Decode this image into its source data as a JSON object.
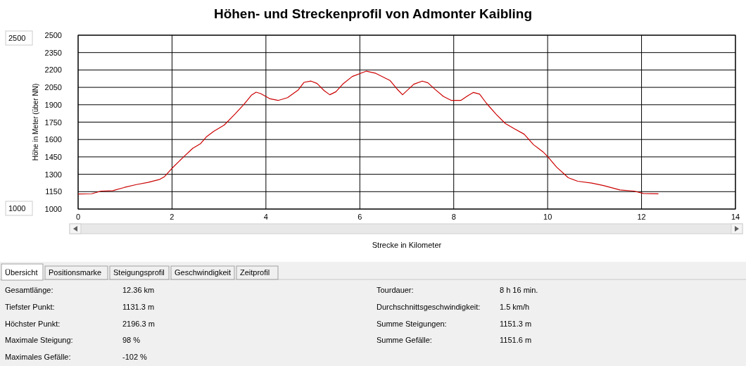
{
  "chart_data": {
    "type": "line",
    "title": "Höhen- und Streckenprofil von Admonter Kaibling",
    "xlabel": "Strecke in Kilometer",
    "ylabel": "Höhe in Meter (über NN)",
    "x": [
      0,
      0.29,
      0.49,
      0.74,
      0.99,
      1.24,
      1.49,
      1.74,
      1.84,
      2.0,
      2.24,
      2.44,
      2.61,
      2.74,
      2.89,
      3.11,
      3.34,
      3.54,
      3.69,
      3.79,
      3.89,
      4.09,
      4.26,
      4.46,
      4.69,
      4.81,
      4.96,
      5.09,
      5.24,
      5.36,
      5.49,
      5.64,
      5.84,
      6.14,
      6.34,
      6.64,
      6.79,
      6.91,
      7.15,
      7.33,
      7.45,
      7.6,
      7.78,
      7.95,
      8.15,
      8.3,
      8.42,
      8.55,
      8.7,
      8.9,
      9.1,
      9.3,
      9.5,
      9.7,
      9.9,
      10.0,
      10.19,
      10.44,
      10.64,
      10.94,
      11.19,
      11.54,
      11.84,
      12.04,
      12.36
    ],
    "series": [
      {
        "color": "#cc0000",
        "values": [
          1130,
          1132,
          1155,
          1159,
          1187,
          1211,
          1230,
          1256,
          1280,
          1352,
          1447,
          1524,
          1565,
          1626,
          1671,
          1724,
          1819,
          1907,
          1982,
          2008,
          1996,
          1951,
          1937,
          1961,
          2028,
          2093,
          2104,
          2083,
          2022,
          1986,
          2012,
          2079,
          2144,
          2190,
          2171,
          2110,
          2037,
          1986,
          2077,
          2104,
          2089,
          2033,
          1972,
          1937,
          1937,
          1978,
          2006,
          1992,
          1911,
          1819,
          1738,
          1691,
          1646,
          1555,
          1494,
          1453,
          1362,
          1270,
          1240,
          1224,
          1203,
          1165,
          1155,
          1134,
          1131
        ]
      }
    ],
    "xlim": [
      0,
      14
    ],
    "xticks": [
      0,
      2,
      4,
      6,
      8,
      10,
      12,
      14
    ],
    "ylim": [
      1000,
      2500
    ],
    "yticks": [
      1000,
      1150,
      1300,
      1450,
      1600,
      1750,
      1900,
      2050,
      2200,
      2350,
      2500
    ],
    "grid": true,
    "marker": "none",
    "line_style": "solid",
    "annotations": [
      "2500",
      "1000",
      "Übersicht",
      "Positionsmarke",
      "Steigungsprofil",
      "Geschwindigkeit",
      "Zeitprofil",
      "Gesamtlänge:",
      "12.36 km",
      "Tiefster Punkt:",
      "1131.3 m",
      "Höchster Punkt:",
      "2196.3 m",
      "Maximale Steigung:",
      "98 %",
      "Maximales Gefälle:",
      "-102 %",
      "Tourdauer:",
      "8 h 16 min.",
      "Durchschnittsgeschwindigkeit:",
      "1.5 km/h",
      "Summe Steigungen:",
      "1151.3 m",
      "Summe Gefälle:",
      "1151.6 m"
    ]
  }
}
